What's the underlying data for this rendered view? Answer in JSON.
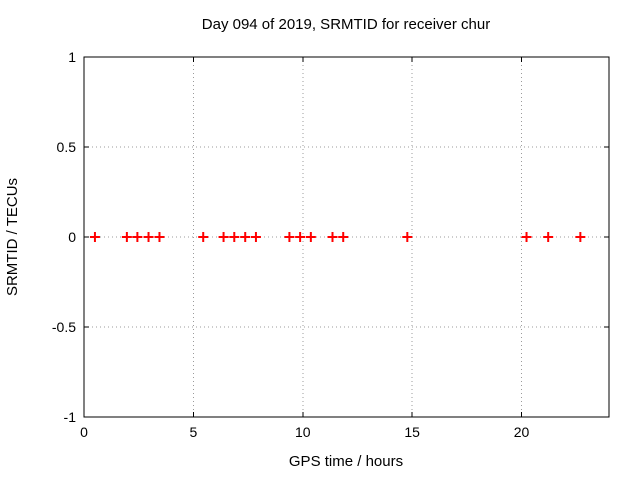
{
  "chart_data": {
    "type": "scatter",
    "title": "Day 094 of 2019, SRMTID for receiver chur",
    "xlabel": "GPS time / hours",
    "ylabel": "SRMTID / TECUs",
    "xlim": [
      0,
      24
    ],
    "ylim": [
      -1,
      1
    ],
    "x_ticks": {
      "values": [
        0,
        5,
        10,
        15,
        20
      ],
      "labels": [
        "0",
        "5",
        "10",
        "15",
        "20"
      ]
    },
    "y_ticks": {
      "values": [
        -1,
        -0.5,
        0,
        0.5,
        1
      ],
      "labels": [
        "-1",
        "-0.5",
        "0",
        "0.5",
        "1"
      ]
    },
    "grid": true,
    "legend": "none",
    "marker": "plus",
    "marker_color": "#ff0000",
    "grid_color": "#9b9b9b",
    "border_color": "#000000",
    "series": [
      {
        "name": "SRMTID",
        "x": [
          0.5,
          1.96,
          2.44,
          2.95,
          3.45,
          5.45,
          6.38,
          6.87,
          7.37,
          7.86,
          9.39,
          9.88,
          10.37,
          11.36,
          11.85,
          14.78,
          20.23,
          21.22,
          22.69
        ],
        "y": [
          0,
          0,
          0,
          0,
          0,
          0,
          0,
          0,
          0,
          0,
          0,
          0,
          0,
          0,
          0,
          0,
          0,
          0,
          0
        ]
      }
    ]
  }
}
